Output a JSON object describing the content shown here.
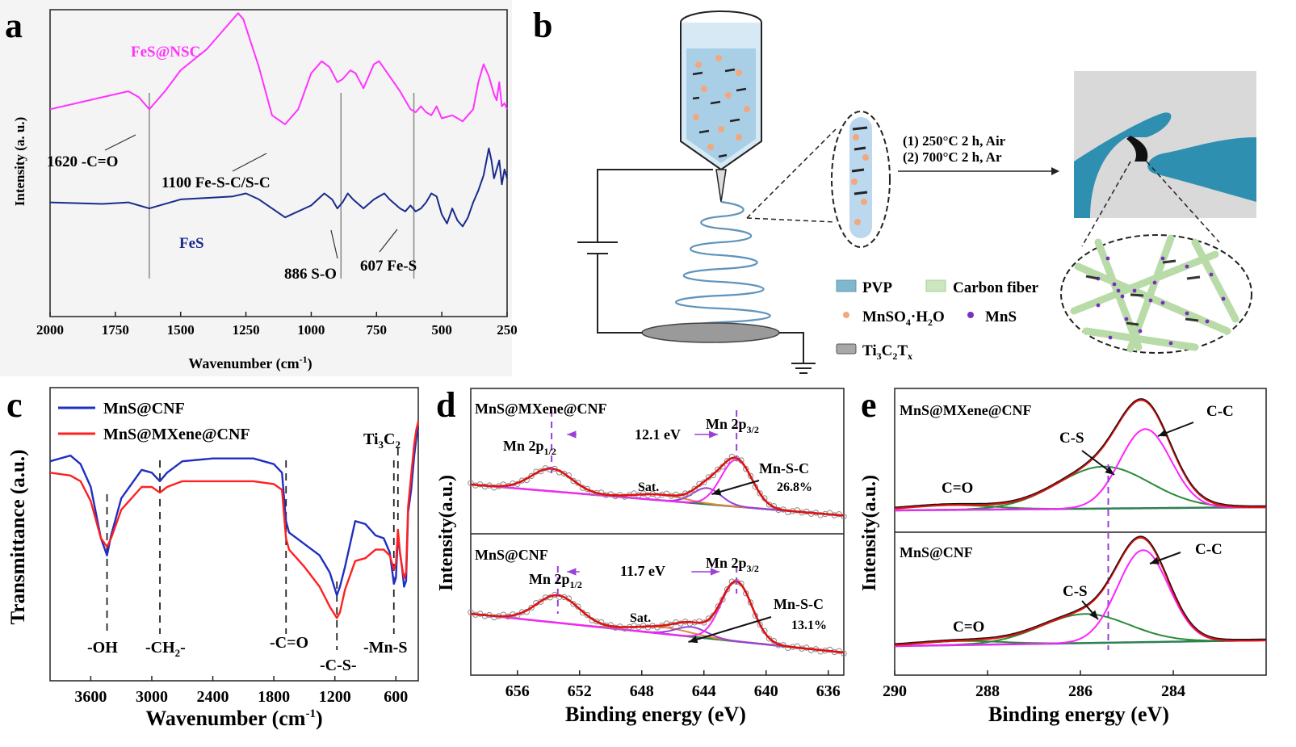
{
  "panels": {
    "a": {
      "letter": "a"
    },
    "b": {
      "letter": "b"
    },
    "c": {
      "letter": "c"
    },
    "d": {
      "letter": "d"
    },
    "e": {
      "letter": "e"
    }
  },
  "chart_data": [
    {
      "id": "a",
      "type": "line",
      "xlabel": "Wavenumber (cm",
      "xlabel_sup": "-1",
      "xlabel_end": ")",
      "ylabel": "Intensity (a. u.)",
      "x_reversed": true,
      "xlim": [
        2000,
        250
      ],
      "ylim": [
        0,
        10
      ],
      "xticks": [
        2000,
        1750,
        1500,
        1250,
        1000,
        750,
        500,
        250
      ],
      "series": [
        {
          "name": "FeS@NSC",
          "color": "#ff33ff",
          "x": [
            2000,
            1900,
            1800,
            1700,
            1660,
            1620,
            1560,
            1500,
            1400,
            1330,
            1280,
            1260,
            1200,
            1150,
            1100,
            1050,
            1000,
            960,
            930,
            900,
            880,
            850,
            830,
            800,
            760,
            740,
            700,
            660,
            640,
            620,
            600,
            580,
            560,
            540,
            520,
            500,
            460,
            420,
            380,
            360,
            340,
            320,
            300,
            290,
            280,
            270,
            260,
            250
          ],
          "y": [
            6.9,
            7.1,
            7.3,
            7.5,
            7.3,
            6.9,
            7.5,
            8.2,
            8.9,
            9.6,
            10.1,
            9.9,
            8.3,
            6.7,
            6.4,
            6.9,
            8.1,
            8.5,
            8.3,
            7.8,
            7.9,
            8.2,
            8.1,
            7.6,
            8.4,
            8.5,
            8.0,
            7.5,
            7.2,
            6.9,
            6.8,
            7.0,
            6.8,
            6.7,
            7.0,
            6.6,
            6.7,
            6.5,
            6.9,
            7.8,
            8.4,
            8.0,
            7.4,
            7.2,
            7.8,
            7.0,
            7.1,
            6.9
          ]
        },
        {
          "name": "FeS",
          "color": "#1a2a8a",
          "x": [
            2000,
            1800,
            1700,
            1620,
            1500,
            1400,
            1300,
            1250,
            1200,
            1150,
            1100,
            1000,
            950,
            920,
            900,
            880,
            860,
            840,
            800,
            760,
            720,
            700,
            660,
            640,
            620,
            600,
            580,
            560,
            540,
            520,
            500,
            480,
            460,
            440,
            420,
            400,
            380,
            360,
            340,
            320,
            310,
            300,
            290,
            280,
            270,
            260,
            250
          ],
          "y": [
            3.8,
            3.75,
            3.8,
            3.6,
            3.9,
            3.95,
            4.0,
            4.1,
            3.9,
            3.6,
            3.3,
            3.7,
            4.1,
            3.9,
            3.6,
            3.8,
            4.1,
            3.9,
            3.6,
            3.9,
            4.1,
            3.9,
            3.6,
            3.5,
            3.7,
            3.5,
            3.6,
            3.8,
            4.1,
            4.0,
            3.4,
            3.1,
            3.6,
            3.2,
            3.0,
            3.3,
            3.8,
            4.2,
            4.7,
            5.6,
            5.2,
            4.6,
            4.9,
            5.2,
            4.4,
            4.9,
            4.6
          ]
        }
      ],
      "annotations": [
        {
          "text": "1620 -C=O",
          "x": 1620
        },
        {
          "text": "1100 Fe-S-C/S-C",
          "x": 1100
        },
        {
          "text": "886 S-O",
          "x": 886
        },
        {
          "text": "607 Fe-S",
          "x": 607
        }
      ],
      "vlines": [
        1620,
        886,
        607
      ],
      "legend_labels": [
        "FeS@NSC",
        "FeS"
      ]
    },
    {
      "id": "c",
      "type": "line",
      "xlabel": "Wavenumber (cm",
      "xlabel_sup": "-1",
      "xlabel_end": ")",
      "ylabel": "Transmittance (a.u.)",
      "x_reversed": true,
      "xlim": [
        4000,
        380
      ],
      "ylim": [
        0,
        10
      ],
      "xticks": [
        3600,
        3000,
        2400,
        1800,
        1200,
        600
      ],
      "legend": "top-left",
      "series": [
        {
          "name": "MnS@CNF",
          "color": "#1f2fbf",
          "x": [
            4000,
            3800,
            3700,
            3600,
            3500,
            3440,
            3400,
            3300,
            3100,
            3000,
            2920,
            2850,
            2700,
            2400,
            2000,
            1800,
            1720,
            1680,
            1650,
            1500,
            1350,
            1250,
            1180,
            1150,
            1100,
            1000,
            900,
            800,
            720,
            660,
            620,
            600,
            580,
            560,
            540,
            520,
            500,
            480,
            450,
            420,
            400,
            380
          ],
          "y": [
            7.7,
            7.9,
            7.6,
            6.8,
            5.0,
            4.4,
            5.1,
            6.4,
            7.4,
            7.3,
            7.0,
            7.3,
            7.7,
            7.8,
            7.8,
            7.6,
            7.3,
            5.6,
            5.2,
            4.8,
            4.4,
            3.8,
            3.0,
            3.3,
            4.0,
            5.6,
            5.5,
            5.1,
            5.0,
            4.5,
            3.4,
            3.6,
            5.1,
            4.5,
            4.0,
            3.3,
            3.5,
            5.9,
            6.7,
            7.9,
            8.5,
            8.9
          ]
        },
        {
          "name": "MnS@MXene@CNF",
          "color": "#ff2020",
          "x": [
            4000,
            3800,
            3700,
            3600,
            3500,
            3440,
            3400,
            3300,
            3100,
            3000,
            2920,
            2850,
            2700,
            2400,
            2000,
            1800,
            1720,
            1680,
            1650,
            1500,
            1350,
            1250,
            1180,
            1150,
            1100,
            1000,
            900,
            800,
            720,
            660,
            620,
            600,
            580,
            560,
            540,
            520,
            500,
            480,
            450,
            420,
            400,
            380
          ],
          "y": [
            7.3,
            7.2,
            7.0,
            6.3,
            5.0,
            4.7,
            5.0,
            6.0,
            6.8,
            6.8,
            6.6,
            6.8,
            7.0,
            7.0,
            7.0,
            6.9,
            6.7,
            5.0,
            4.6,
            4.0,
            3.3,
            2.6,
            2.2,
            2.4,
            3.2,
            4.2,
            4.3,
            4.6,
            4.6,
            4.4,
            3.9,
            4.1,
            5.3,
            4.5,
            4.0,
            3.6,
            3.8,
            6.1,
            7.2,
            8.3,
            8.8,
            9.1
          ]
        }
      ],
      "annotations": [
        {
          "text": "-OH",
          "x": 3440
        },
        {
          "text": "-CH",
          "sub": "2",
          "end": "-",
          "x": 2920
        },
        {
          "text": "-C=O",
          "x": 1680
        },
        {
          "text": "-C-S-",
          "x": 1180
        },
        {
          "text": "-Mn-S",
          "x": 620
        },
        {
          "text": "Ti",
          "sub": "3",
          "mid": "C",
          "sub2": "2",
          "x": 580
        }
      ],
      "legend_labels": [
        "MnS@CNF",
        "MnS@MXene@CNF"
      ]
    },
    {
      "id": "d",
      "type": "line",
      "xlabel": "Binding energy (eV)",
      "ylabel": "Intensity(a.u.)",
      "x_reversed": true,
      "xlim": [
        659,
        635
      ],
      "xticks": [
        656,
        652,
        648,
        644,
        640,
        636
      ],
      "subplots": [
        {
          "title": "MnS@MXene@CNF",
          "split": "12.1 eV",
          "peak_left": "Mn 2p",
          "peak_left_sub": "1/2",
          "peak_right": "Mn 2p",
          "peak_right_sub": "3/2",
          "sat": "Sat.",
          "component": "Mn-S-C",
          "percent": "26.8%"
        },
        {
          "title": "MnS@CNF",
          "split": "11.7 eV",
          "peak_left": "Mn 2p",
          "peak_left_sub": "1/2",
          "peak_right": "Mn 2p",
          "peak_right_sub": "3/2",
          "sat": "Sat.",
          "component": "Mn-S-C",
          "percent": "13.1%"
        }
      ]
    },
    {
      "id": "e",
      "type": "line",
      "xlabel": "Binding energy (eV)",
      "ylabel": "Intensity(a.u.)",
      "x_reversed": true,
      "xlim": [
        290,
        282
      ],
      "xticks": [
        290,
        288,
        286,
        284
      ],
      "subplots": [
        {
          "title": "MnS@MXene@CNF",
          "c_o": "C=O",
          "c_s": "C-S",
          "c_c": "C-C"
        },
        {
          "title": "MnS@CNF",
          "c_o": "C=O",
          "c_s": "C-S",
          "c_c": "C-C"
        }
      ]
    }
  ],
  "schematic": {
    "step1": "(1)  250°C 2 h, Air",
    "step2": "(2)  700°C 2 h, Ar",
    "legend": {
      "pvp": "PVP",
      "carbon": "Carbon fiber",
      "mnso4_a": "MnSO",
      "mnso4_sub": "4",
      "mnso4_b": "·H",
      "mnso4_sub2": "2",
      "mnso4_c": "O",
      "mns": "MnS",
      "ti3c2": "Ti",
      "ti_sub1": "3",
      "ti_c": "C",
      "ti_sub2": "2",
      "ti_t": "T",
      "ti_sub3": "x"
    }
  }
}
